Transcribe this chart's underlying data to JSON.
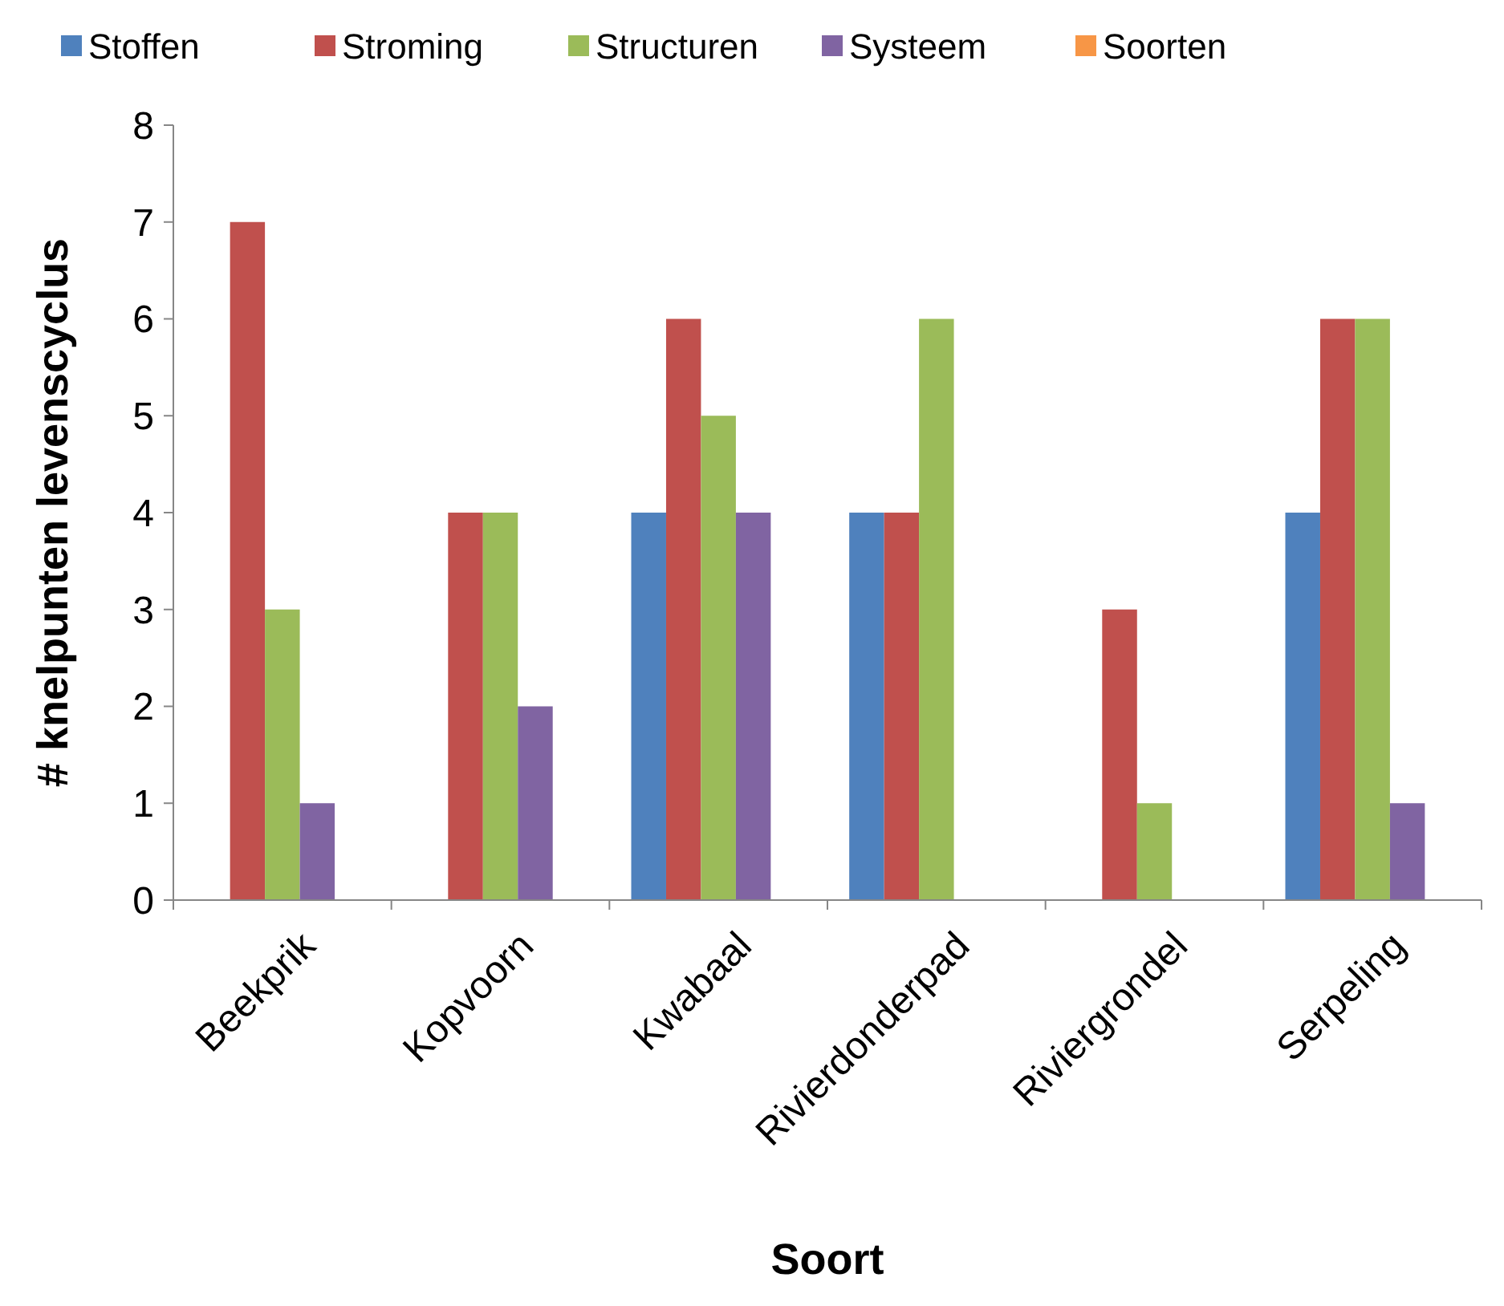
{
  "chart_data": {
    "type": "bar",
    "xlabel": "Soort",
    "ylabel": "# knelpunten levenscyclus",
    "categories": [
      "Beekprik",
      "Kopvoorn",
      "Kwabaal",
      "Rivierdonderpad",
      "Riviergrondel",
      "Serpeling"
    ],
    "series": [
      {
        "name": "Stoffen",
        "color": "#4f81bd",
        "values": [
          0,
          0,
          4,
          4,
          0,
          4
        ]
      },
      {
        "name": "Stroming",
        "color": "#c0504d",
        "values": [
          7,
          4,
          6,
          4,
          3,
          6
        ]
      },
      {
        "name": "Structuren",
        "color": "#9bbb59",
        "values": [
          3,
          4,
          5,
          6,
          1,
          6
        ]
      },
      {
        "name": "Systeem",
        "color": "#8064a2",
        "values": [
          1,
          2,
          4,
          0,
          0,
          1
        ]
      },
      {
        "name": "Soorten",
        "color": "#f79646",
        "values": [
          0,
          0,
          0,
          0,
          0,
          0
        ]
      }
    ],
    "ylim": [
      0,
      8
    ],
    "yticks": [
      0,
      1,
      2,
      3,
      4,
      5,
      6,
      7,
      8
    ],
    "grid": false,
    "legend": "top"
  }
}
